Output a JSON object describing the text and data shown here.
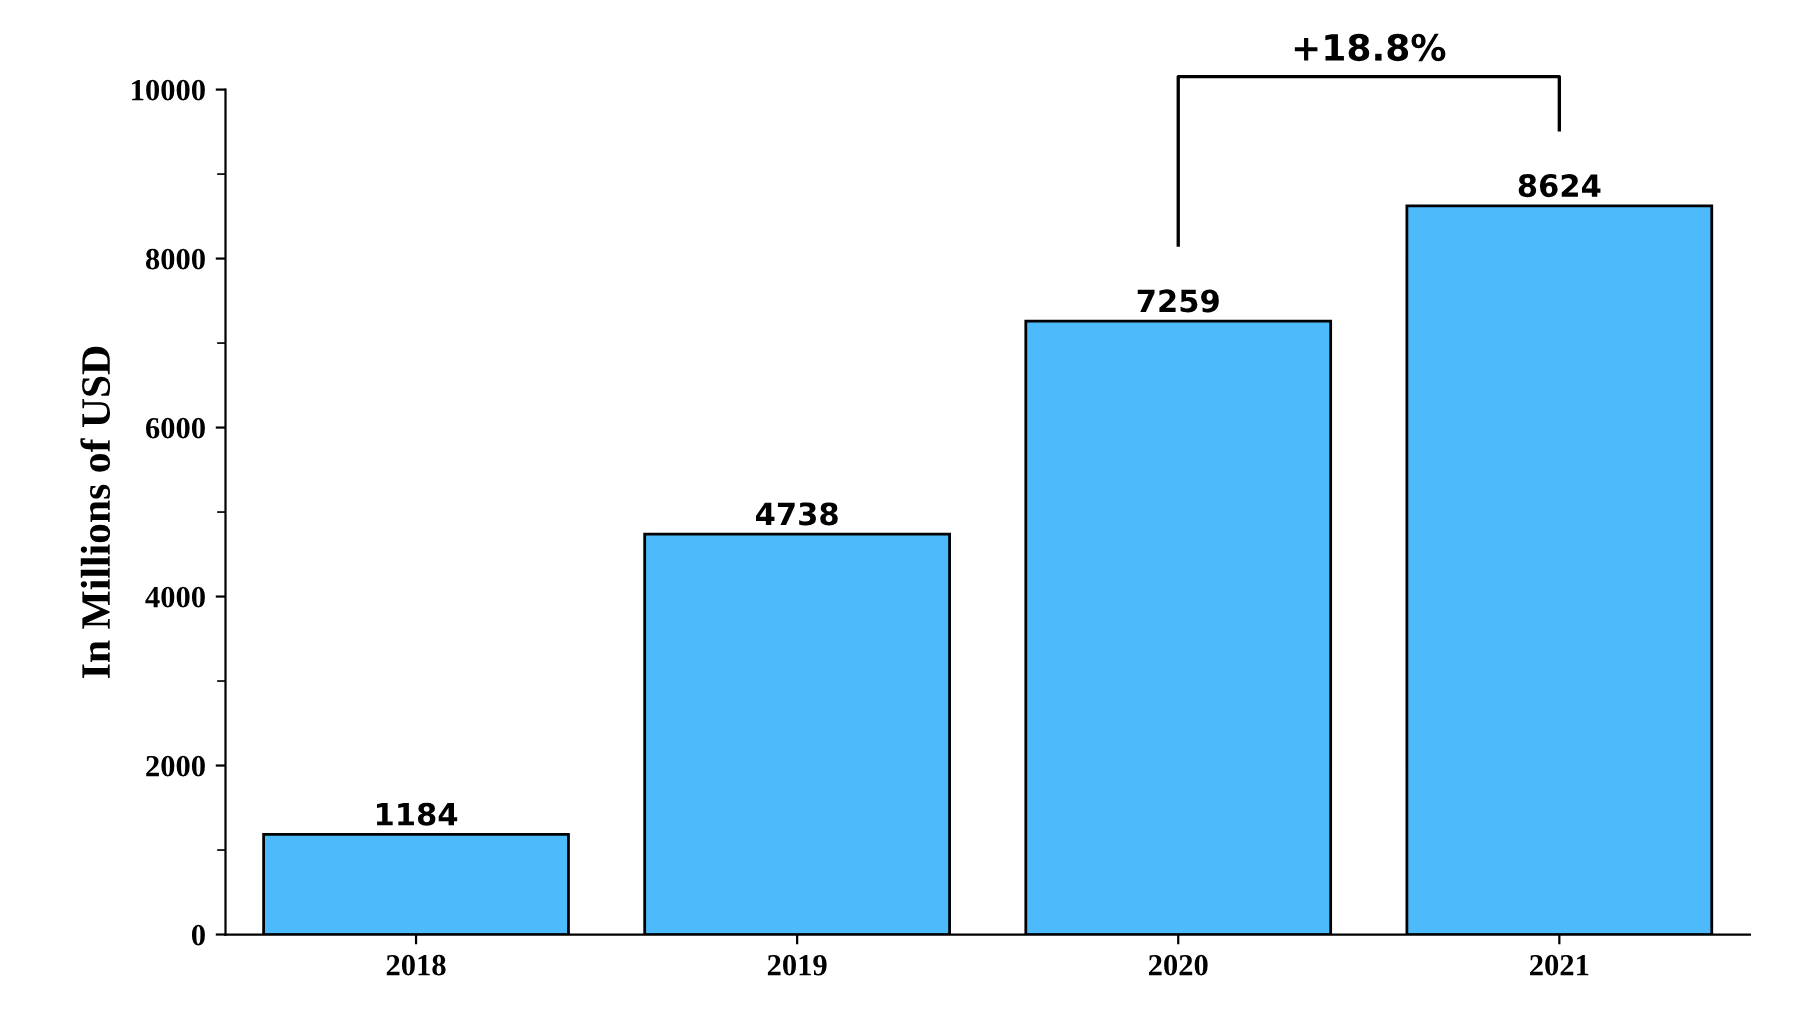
{
  "chart_data": {
    "type": "bar",
    "ylabel": "In Millions of USD",
    "categories": [
      "2018",
      "2019",
      "2020",
      "2021"
    ],
    "values": [
      1184,
      4738,
      7259,
      8624
    ],
    "color": "#4dbbfb",
    "ylim": [
      0,
      10000
    ],
    "yticks": [
      0,
      2000,
      4000,
      6000,
      8000,
      10000
    ],
    "data_labels": true,
    "grid": false,
    "legend": false,
    "annotations": [
      "+18.8%"
    ]
  }
}
